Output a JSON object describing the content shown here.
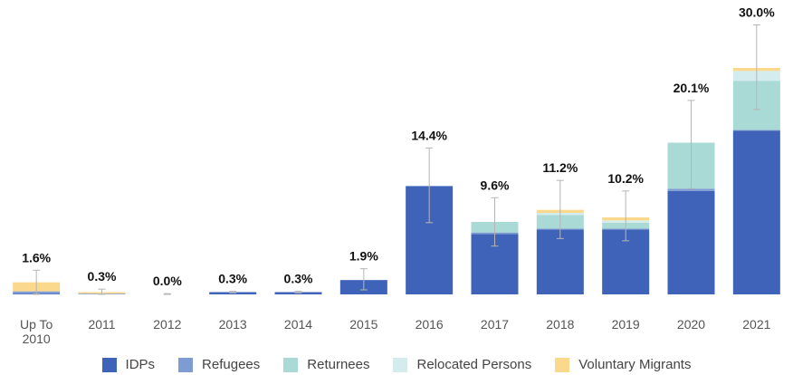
{
  "chart_data": {
    "type": "stacked_bar",
    "categories": [
      "Up To 2010",
      "2011",
      "2012",
      "2013",
      "2014",
      "2015",
      "2016",
      "2017",
      "2018",
      "2019",
      "2020",
      "2021"
    ],
    "series": [
      {
        "name": "IDPs",
        "color": "#3f63b8",
        "values": [
          0.1,
          0,
          0,
          0.3,
          0.3,
          1.9,
          14.3,
          8.0,
          8.6,
          8.6,
          13.7,
          21.7
        ]
      },
      {
        "name": "Refugees",
        "color": "#7f9bd3",
        "values": [
          0.3,
          0.1,
          0,
          0,
          0,
          0,
          0.1,
          0.2,
          0.1,
          0.1,
          0.3,
          0.1
        ]
      },
      {
        "name": "Returnees",
        "color": "#a9dad6",
        "values": [
          0,
          0,
          0,
          0,
          0,
          0,
          0,
          1.4,
          1.8,
          0.8,
          6.1,
          6.5
        ]
      },
      {
        "name": "Relocated Persons",
        "color": "#d4ecee",
        "values": [
          0,
          0,
          0,
          0,
          0,
          0,
          0,
          0,
          0.3,
          0.3,
          0,
          1.3
        ]
      },
      {
        "name": "Voluntary Migrants",
        "color": "#fbd98c",
        "values": [
          1.2,
          0.2,
          0,
          0,
          0,
          0,
          0,
          0,
          0.4,
          0.4,
          0,
          0.4
        ]
      }
    ],
    "totals": {
      "values": [
        1.6,
        0.3,
        0.0,
        0.3,
        0.3,
        1.9,
        14.4,
        9.6,
        11.2,
        10.2,
        20.1,
        30.0
      ],
      "value_labels": [
        "1.6%",
        "0.3%",
        "0.0%",
        "0.3%",
        "0.3%",
        "1.9%",
        "14.4%",
        "9.6%",
        "11.2%",
        "10.2%",
        "20.1%",
        "30.0%"
      ]
    },
    "error_low": [
      0.0,
      0.0,
      0.0,
      0.2,
      0.2,
      0.6,
      9.5,
      6.4,
      7.4,
      7.1,
      14.0,
      24.5
    ],
    "error_high": [
      3.2,
      0.7,
      0.1,
      0.4,
      0.4,
      3.4,
      19.4,
      12.8,
      15.1,
      13.7,
      25.7,
      35.7
    ],
    "error_color": "#b5b5b5",
    "ylim": [
      0,
      36
    ]
  }
}
